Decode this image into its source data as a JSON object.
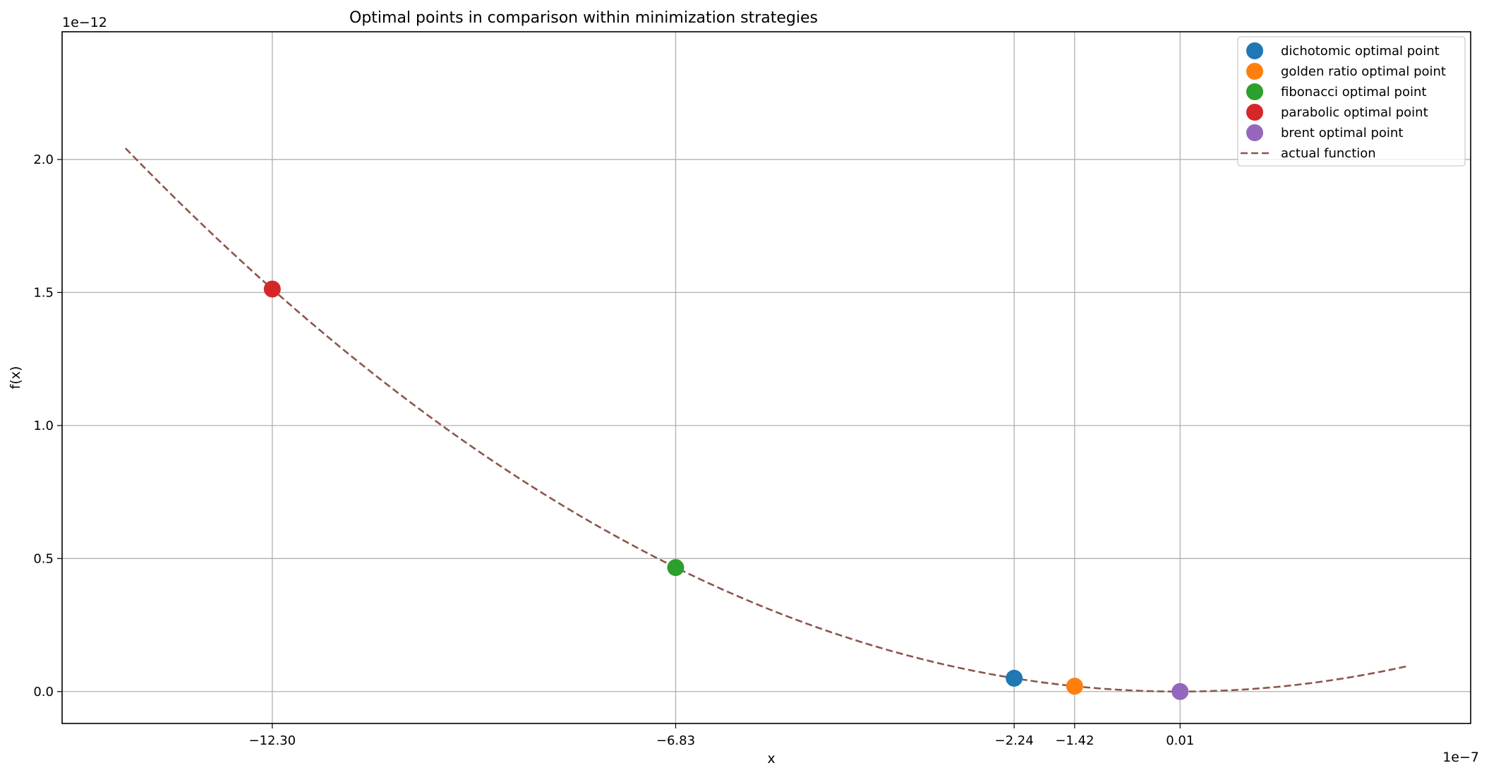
{
  "chart_data": {
    "type": "scatter",
    "title": "Optimal points in comparison within minimization strategies",
    "xlabel": "x",
    "ylabel": "f(x)",
    "x_offset_text": "1e−7",
    "y_offset_text": "1e−12",
    "x_scale": 1e-07,
    "y_scale": 1e-12,
    "xlim": [
      -15.15,
      3.95
    ],
    "ylim": [
      -0.12,
      2.48
    ],
    "xticks": [
      -12.3,
      -6.83,
      -2.24,
      -1.42,
      0.01
    ],
    "xtick_labels": [
      "−12.30",
      "−6.83",
      "−2.24",
      "−1.42",
      "0.01"
    ],
    "yticks": [
      0.0,
      0.5,
      1.0,
      1.5,
      2.0
    ],
    "ytick_labels": [
      "0.0",
      "0.5",
      "1.0",
      "1.5",
      "2.0"
    ],
    "grid": true,
    "legend_position": "top-right",
    "series": [
      {
        "name": "dichotomic optimal point",
        "kind": "point",
        "color": "#1f77b4",
        "x": -2.24,
        "y": 0.05
      },
      {
        "name": "golden ratio optimal point",
        "kind": "point",
        "color": "#ff7f0e",
        "x": -1.42,
        "y": 0.02
      },
      {
        "name": "fibonacci optimal point",
        "kind": "point",
        "color": "#2ca02c",
        "x": -6.83,
        "y": 0.466
      },
      {
        "name": "parabolic optimal point",
        "kind": "point",
        "color": "#d62728",
        "x": -12.3,
        "y": 1.513
      },
      {
        "name": "brent optimal point",
        "kind": "point",
        "color": "#9467bd",
        "x": 0.01,
        "y": 0.0
      },
      {
        "name": "actual function",
        "kind": "dashed-line",
        "color": "#8c564b",
        "x_range": [
          -14.29,
          3.1
        ],
        "coefficient": 0.01
      }
    ]
  }
}
